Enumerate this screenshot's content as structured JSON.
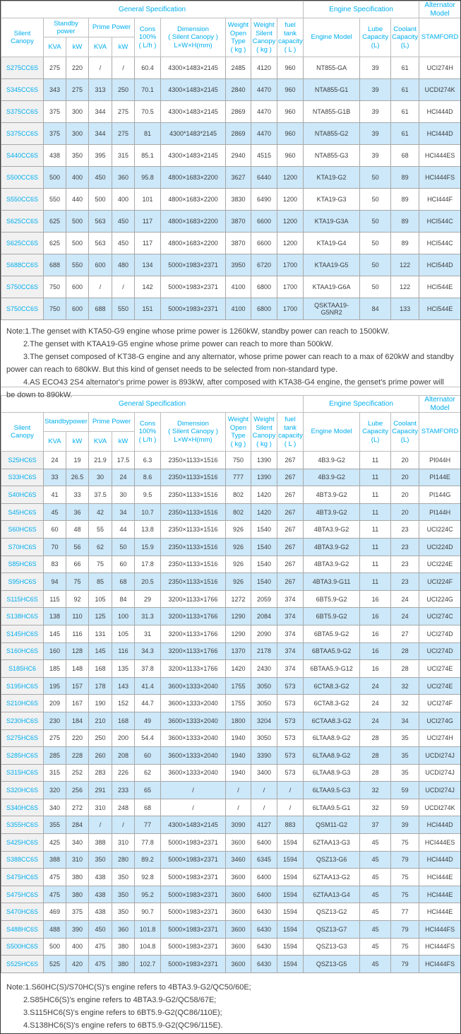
{
  "colors": {
    "accent_cyan": "#00AEEF",
    "row_alt_blue": "#CCE8F9",
    "first_col_gray": "#F1F1F1",
    "grid_line": "#A8A8A8"
  },
  "column_keys": [
    "model",
    "standby-kva",
    "standby-kw",
    "prime-kva",
    "prime-kw",
    "cons",
    "dimension",
    "weight-open",
    "weight-silent",
    "fuel-tank",
    "engine-model",
    "lube-capacity",
    "coolant-capacity",
    "stamford"
  ],
  "table1": {
    "group": {
      "general": "General Specification",
      "engine": "Engine Specification",
      "alternator": [
        "Alternator",
        "Model"
      ]
    },
    "header": {
      "silent_canopy": "Silent Canopy",
      "standby_power": [
        "Standby",
        "power"
      ],
      "prime_power": "Prime Power",
      "kva1": "KVA",
      "kw1": "kW",
      "kva2": "KVA",
      "kw2": "kW",
      "cons": [
        "Cons",
        "100%",
        "( L/h )"
      ],
      "dimension": [
        "Dimension",
        "( Silent Canopy )",
        "L×W×H(mm)"
      ],
      "weight_open": [
        "Weight",
        "Open Type",
        "( kg )"
      ],
      "weight_silent": [
        "Weight",
        "Silent",
        "Canopy",
        "( kg )"
      ],
      "fuel_tank": [
        "fuel tank",
        "capacity",
        "( L )"
      ],
      "engine_model": "Engine Model",
      "lube": [
        "Lube",
        "Capacity",
        "(L)"
      ],
      "coolant": [
        "Coolant",
        "Capacity",
        "(L)"
      ],
      "stamford": "STAMFORD"
    },
    "rows": [
      [
        "S275CC6S",
        "275",
        "220",
        "/",
        "/",
        "60.4",
        "4300×1483×2145",
        "2485",
        "4120",
        "960",
        "NT855-GA",
        "39",
        "61",
        "UCI274H"
      ],
      [
        "S345CC6S",
        "343",
        "275",
        "313",
        "250",
        "70.1",
        "4300×1483×2145",
        "2840",
        "4470",
        "960",
        "NTA855-G1",
        "39",
        "61",
        "UCDI274K"
      ],
      [
        "S375CC6S",
        "375",
        "300",
        "344",
        "275",
        "70.5",
        "4300×1483×2145",
        "2869",
        "4470",
        "960",
        "NTA855-G1B",
        "39",
        "61",
        "HCI444D"
      ],
      [
        "S375CC6S",
        "375",
        "300",
        "344",
        "275",
        "81",
        "4300*1483*2145",
        "2869",
        "4470",
        "960",
        "NTA855-G2",
        "39",
        "61",
        "HCI444D"
      ],
      [
        "S440CC6S",
        "438",
        "350",
        "395",
        "315",
        "85.1",
        "4300×1483×2145",
        "2940",
        "4515",
        "960",
        "NTA855-G3",
        "39",
        "68",
        "HCI444ES"
      ],
      [
        "S500CC6S",
        "500",
        "400",
        "450",
        "360",
        "95.8",
        "4800×1683×2200",
        "3627",
        "6440",
        "1200",
        "KTA19-G2",
        "50",
        "89",
        "HCI444FS"
      ],
      [
        "S550CC6S",
        "550",
        "440",
        "500",
        "400",
        "101",
        "4800×1683×2200",
        "3830",
        "6490",
        "1200",
        "KTA19-G3",
        "50",
        "89",
        "HCI444F"
      ],
      [
        "S625CC6S",
        "625",
        "500",
        "563",
        "450",
        "117",
        "4800×1683×2200",
        "3870",
        "6600",
        "1200",
        "KTA19-G3A",
        "50",
        "89",
        "HCI544C"
      ],
      [
        "S625CC6S",
        "625",
        "500",
        "563",
        "450",
        "117",
        "4800×1683×2200",
        "3870",
        "6600",
        "1200",
        "KTA19-G4",
        "50",
        "89",
        "HCI544C"
      ],
      [
        "S688CC6S",
        "688",
        "550",
        "600",
        "480",
        "134",
        "5000×1983×2371",
        "3950",
        "6720",
        "1700",
        "KTAA19-G5",
        "50",
        "122",
        "HCI544D"
      ],
      [
        "S750CC6S",
        "750",
        "600",
        "/",
        "/",
        "142",
        "5000×1983×2371",
        "4100",
        "6800",
        "1700",
        "KTAA19-G6A",
        "50",
        "122",
        "HCI544E"
      ],
      [
        "S750CC6S",
        "750",
        "600",
        "688",
        "550",
        "151",
        "5000×1983×2371",
        "4100",
        "6800",
        "1700",
        "QSKTAA19-G5NR2",
        "84",
        "133",
        "HCI544E"
      ]
    ],
    "notes": [
      "Note:1.The genset with KTA50-G9 engine whose prime power is 1260kW, standby power can reach to 1500kW.",
      "2.The genset with KTAA19-G5 engine whose prime power can reach to more than 500kW.",
      "3.The genset composed of KT38-G engine and any alternator, whose prime power can reach to a max of 620kW and standby power can reach to 680kW. But this kind of genset needs to be selected from non-standard type.",
      "4.AS ECO43 2S4 alternator's prime power is 893kW, after composed with KTA38-G4 engine, the genset's prime power will be down to 890kW."
    ]
  },
  "table2": {
    "group": {
      "general": "General Specification",
      "engine": "Engine Specification",
      "alternator": [
        "Alternator",
        "Model"
      ]
    },
    "header": {
      "silent_canopy": "Silent Canopy",
      "standby_power": [
        "Standbypower"
      ],
      "prime_power": "Prime Power",
      "kva1": "KVA",
      "kw1": "kW",
      "kva2": "KVA",
      "kw2": "kW",
      "cons": [
        "Cons",
        "100%",
        "( L/h )"
      ],
      "dimension": [
        "Dimension",
        "( Silent Canopy )",
        "L×W×H(mm)"
      ],
      "weight_open": [
        "Weight",
        "Open Type",
        "( kg )"
      ],
      "weight_silent": [
        "Weight",
        "Silent",
        "Canopy",
        "( kg )"
      ],
      "fuel_tank": [
        "fuel tank",
        "capacity",
        "( L )"
      ],
      "engine_model": "Engine Model",
      "lube": [
        "Lube",
        "Capacity",
        "(L)"
      ],
      "coolant": [
        "Coolant",
        "Capacity",
        "(L)"
      ],
      "stamford": "STAMFORD"
    },
    "rows": [
      [
        "S25HC6S",
        "24",
        "19",
        "21.9",
        "17.5",
        "6.3",
        "2350×1133×1516",
        "750",
        "1390",
        "267",
        "4B3.9-G2",
        "11",
        "20",
        "PI044H"
      ],
      [
        "S33HC6S",
        "33",
        "26.5",
        "30",
        "24",
        "8.6",
        "2350×1133×1516",
        "777",
        "1390",
        "267",
        "4B3.9-G2",
        "11",
        "20",
        "PI144E"
      ],
      [
        "S40HC6S",
        "41",
        "33",
        "37.5",
        "30",
        "9.5",
        "2350×1133×1516",
        "802",
        "1420",
        "267",
        "4BT3.9-G2",
        "11",
        "20",
        "PI144G"
      ],
      [
        "S45HC6S",
        "45",
        "36",
        "42",
        "34",
        "10.7",
        "2350×1133×1516",
        "802",
        "1420",
        "267",
        "4BT3.9-G2",
        "11",
        "20",
        "PI144H"
      ],
      [
        "S60HC6S",
        "60",
        "48",
        "55",
        "44",
        "13.8",
        "2350×1133×1516",
        "926",
        "1540",
        "267",
        "4BTA3.9-G2",
        "11",
        "23",
        "UCI224C"
      ],
      [
        "S70HC6S",
        "70",
        "56",
        "62",
        "50",
        "15.9",
        "2350×1133×1516",
        "926",
        "1540",
        "267",
        "4BTA3.9-G2",
        "11",
        "23",
        "UCI224D"
      ],
      [
        "S85HC6S",
        "83",
        "66",
        "75",
        "60",
        "17.8",
        "2350×1133×1516",
        "926",
        "1540",
        "267",
        "4BTA3.9-G2",
        "11",
        "23",
        "UCI224E"
      ],
      [
        "S95HC6S",
        "94",
        "75",
        "85",
        "68",
        "20.5",
        "2350×1133×1516",
        "926",
        "1540",
        "267",
        "4BTA3.9-G11",
        "11",
        "23",
        "UCI224F"
      ],
      [
        "S115HC6S",
        "115",
        "92",
        "105",
        "84",
        "29",
        "3200×1133×1766",
        "1272",
        "2059",
        "374",
        "6BT5.9-G2",
        "16",
        "24",
        "UCI224G"
      ],
      [
        "S138HC6S",
        "138",
        "110",
        "125",
        "100",
        "31.3",
        "3200×1133×1766",
        "1290",
        "2084",
        "374",
        "6BT5.9-G2",
        "16",
        "24",
        "UCI274C"
      ],
      [
        "S145HC6S",
        "145",
        "116",
        "131",
        "105",
        "31",
        "3200×1133×1766",
        "1290",
        "2090",
        "374",
        "6BTA5.9-G2",
        "16",
        "27",
        "UCI274D"
      ],
      [
        "S160HC6S",
        "160",
        "128",
        "145",
        "116",
        "34.3",
        "3200×1133×1766",
        "1370",
        "2178",
        "374",
        "6BTAA5.9-G2",
        "16",
        "28",
        "UCI274D"
      ],
      [
        "S185HC6",
        "185",
        "148",
        "168",
        "135",
        "37.8",
        "3200×1133×1766",
        "1420",
        "2430",
        "374",
        "6BTAA5.9-G12",
        "16",
        "28",
        "UCI274E"
      ],
      [
        "S195HC6S",
        "195",
        "157",
        "178",
        "143",
        "41.4",
        "3600×1333×2040",
        "1755",
        "3050",
        "573",
        "6CTA8.3-G2",
        "24",
        "32",
        "UCI274E"
      ],
      [
        "S210HC6S",
        "209",
        "167",
        "190",
        "152",
        "44.7",
        "3600×1333×2040",
        "1755",
        "3050",
        "573",
        "6CTA8.3-G2",
        "24",
        "32",
        "UCI274F"
      ],
      [
        "S230HC6S",
        "230",
        "184",
        "210",
        "168",
        "49",
        "3600×1333×2040",
        "1800",
        "3204",
        "573",
        "6CTAA8.3-G2",
        "24",
        "34",
        "UCI274G"
      ],
      [
        "S275HC6S",
        "275",
        "220",
        "250",
        "200",
        "54.4",
        "3600×1333×2040",
        "1940",
        "3050",
        "573",
        "6LTAA8.9-G2",
        "28",
        "35",
        "UCI274H"
      ],
      [
        "S285HC6S",
        "285",
        "228",
        "260",
        "208",
        "60",
        "3600×1333×2040",
        "1940",
        "3390",
        "573",
        "6LTAA8.9-G2",
        "28",
        "35",
        "UCDI274J"
      ],
      [
        "S315HC6S",
        "315",
        "252",
        "283",
        "226",
        "62",
        "3600×1333×2040",
        "1940",
        "3400",
        "573",
        "6LTAA8.9-G3",
        "28",
        "35",
        "UCDI274J"
      ],
      [
        "S320HC6S",
        "320",
        "256",
        "291",
        "233",
        "65",
        "/",
        "/",
        "/",
        "/",
        "6LTAA9.5-G3",
        "32",
        "59",
        "UCDI274J"
      ],
      [
        "S340HC6S",
        "340",
        "272",
        "310",
        "248",
        "68",
        "/",
        "/",
        "/",
        "/",
        "6LTAA9.5-G1",
        "32",
        "59",
        "UCDI274K"
      ],
      [
        "S355HC6S",
        "355",
        "284",
        "/",
        "/",
        "77",
        "4300×1483×2145",
        "3090",
        "4127",
        "883",
        "QSM11-G2",
        "37",
        "39",
        "HCI444D"
      ],
      [
        "S425HC6S",
        "425",
        "340",
        "388",
        "310",
        "77.8",
        "5000×1983×2371",
        "3600",
        "6400",
        "1594",
        "6ZTAA13-G3",
        "45",
        "75",
        "HCI444ES"
      ],
      [
        "S388CC6S",
        "388",
        "310",
        "350",
        "280",
        "89.2",
        "5000×1983×2371",
        "3460",
        "6345",
        "1594",
        "QSZ13-G6",
        "45",
        "79",
        "HCI444D"
      ],
      [
        "S475HC6S",
        "475",
        "380",
        "438",
        "350",
        "92.8",
        "5000×1983×2371",
        "3600",
        "6400",
        "1594",
        "6ZTAA13-G2",
        "45",
        "75",
        "HCI444E"
      ],
      [
        "S475HC6S",
        "475",
        "380",
        "438",
        "350",
        "95.2",
        "5000×1983×2371",
        "3600",
        "6400",
        "1594",
        "6ZTAA13-G4",
        "45",
        "75",
        "HCI444E"
      ],
      [
        "S470HC6S",
        "469",
        "375",
        "438",
        "350",
        "90.7",
        "5000×1983×2371",
        "3600",
        "6430",
        "1594",
        "QSZ13-G2",
        "45",
        "77",
        "HCI444E"
      ],
      [
        "S488HC6S",
        "488",
        "390",
        "450",
        "360",
        "101.8",
        "5000×1983×2371",
        "3600",
        "6430",
        "1594",
        "QSZ13-G7",
        "45",
        "79",
        "HCI444FS"
      ],
      [
        "S500HC6S",
        "500",
        "400",
        "475",
        "380",
        "104.8",
        "5000×1983×2371",
        "3600",
        "6430",
        "1594",
        "QSZ13-G3",
        "45",
        "75",
        "HCI444FS"
      ],
      [
        "S525HC6S",
        "525",
        "420",
        "475",
        "380",
        "102.7",
        "5000×1983×2371",
        "3600",
        "6430",
        "1594",
        "QSZ13-G5",
        "45",
        "79",
        "HCI444FS"
      ]
    ],
    "notes": [
      "Note:1.S60HC(S)/S70HC(S)'s engine refers to 4BTA3.9-G2/QC50/60E;",
      "2.S85HC6(S)'s engine refers to 4BTA3.9-G2/QC58/67E;",
      "3.S115HC6(S)'s engine refers to 6BT5.9-G2(QC86/110E);",
      "4.S138HC6(S)'s engine refers to 6BT5.9-G2(QC96/115E)."
    ]
  }
}
